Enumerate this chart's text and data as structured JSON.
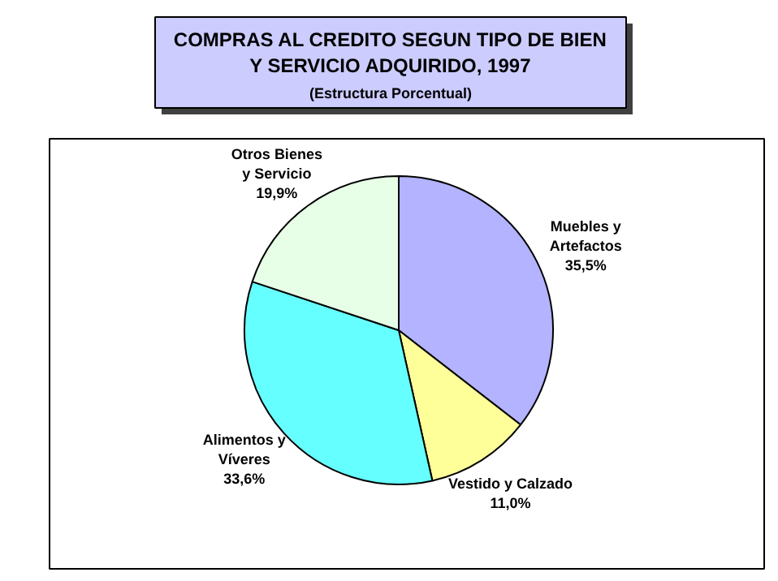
{
  "chart_data": {
    "type": "pie",
    "title": "COMPRAS AL CREDITO SEGUN TIPO DE BIEN\nY SERVICIO ADQUIRIDO, 1997",
    "subtitle": "(Estructura Porcentual)",
    "categories": [
      "Muebles y\nArtefactos",
      "Vestido y Calzado",
      "Alimentos y\nVíveres",
      "Otros Bienes\ny Servicio"
    ],
    "values": [
      35.5,
      11.0,
      33.6,
      19.9
    ],
    "value_labels": [
      "35,5%",
      "11,0%",
      "33,6%",
      "19,9%"
    ],
    "colors": [
      "#b3b3ff",
      "#ffff99",
      "#66ffff",
      "#e6ffe6"
    ]
  }
}
